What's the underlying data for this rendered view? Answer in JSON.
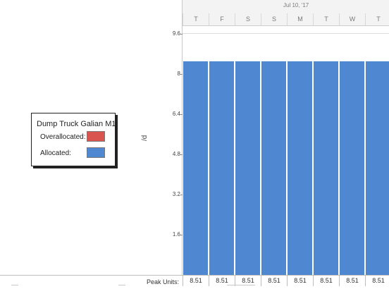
{
  "legend": {
    "title": "Dump Truck Galian M1",
    "items": [
      {
        "label": "Overallocated:",
        "color": "#d9534f"
      },
      {
        "label": "Allocated:",
        "color": "#4f88d0"
      }
    ]
  },
  "timescale": {
    "date": "Jul 10, '17",
    "days": [
      "T",
      "F",
      "S",
      "S",
      "M",
      "T",
      "W",
      "T"
    ]
  },
  "y_axis": {
    "label": "/d",
    "ticks": [
      "9.6",
      "8",
      "6.4",
      "4.8",
      "3.2",
      "1.6"
    ]
  },
  "peak_units": {
    "label": "Peak Units:",
    "values": [
      "8.51",
      "8.51",
      "8.51",
      "8.51",
      "8.51",
      "8.51",
      "8.51",
      "8.51"
    ]
  },
  "chart_data": {
    "type": "bar",
    "categories": [
      "T",
      "F",
      "S",
      "S",
      "M",
      "T",
      "W",
      "T"
    ],
    "values": [
      8.51,
      8.51,
      8.51,
      8.51,
      8.51,
      8.51,
      8.51,
      8.51
    ],
    "ylim": [
      0,
      9.6
    ],
    "colors": {
      "allocated": "#4f88d0",
      "overallocated": "#d9534f"
    }
  }
}
